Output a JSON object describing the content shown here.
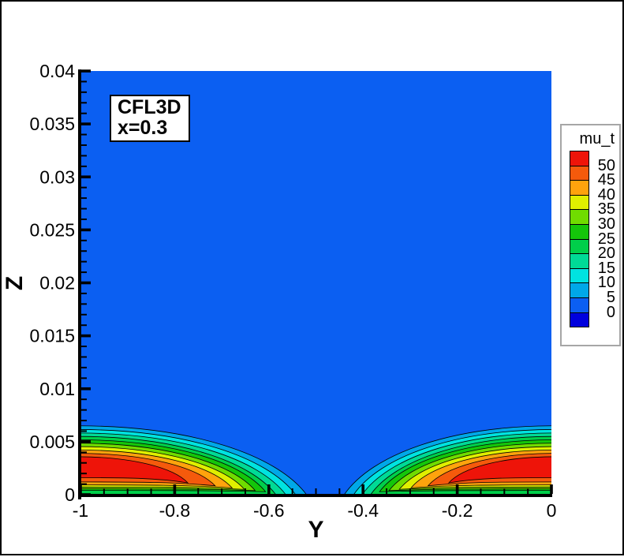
{
  "annotation": {
    "line1": "CFL3D",
    "line2": "x=0.3"
  },
  "axes": {
    "x": {
      "label": "Y",
      "tick_labels": [
        "-1",
        "-0.8",
        "-0.6",
        "-0.4",
        "-0.2",
        "0"
      ]
    },
    "z": {
      "label": "Z",
      "tick_labels": [
        "0",
        "0.005",
        "0.01",
        "0.015",
        "0.02",
        "0.025",
        "0.03",
        "0.035",
        "0.04"
      ]
    }
  },
  "legend": {
    "title": "mu_t",
    "labels_top_to_bottom": [
      "50",
      "45",
      "40",
      "35",
      "30",
      "25",
      "20",
      "15",
      "10",
      "5",
      "0"
    ]
  },
  "chart_data": {
    "type": "contour",
    "title": "",
    "xlabel": "Y",
    "ylabel": "Z",
    "xlim": [
      -1,
      0
    ],
    "ylim": [
      0,
      0.04
    ],
    "x_major_tick_step": 0.2,
    "x_minor_tick_step": 0.05,
    "y_major_tick_step": 0.005,
    "y_minor_tick_step": 0.001,
    "grid": false,
    "legend_position": "right",
    "contour_variable": "mu_t",
    "contour_levels": [
      0,
      5,
      10,
      15,
      20,
      25,
      30,
      35,
      40,
      45,
      50
    ],
    "band_colors_low_to_high": [
      "#0000dd",
      "#0b5ff2",
      "#00a8e8",
      "#00e3e0",
      "#00da96",
      "#00cf4a",
      "#14c60a",
      "#70dc00",
      "#e0ef00",
      "#ffa30d",
      "#f55a0c",
      "#ee1409"
    ],
    "background_value_band": "0-5",
    "blobs": [
      {
        "name": "left-wall-jet",
        "anchor_y": -1,
        "direction": 1,
        "peak": {
          "y": -0.92,
          "z": 0.0026,
          "value": ">50"
        },
        "levels": [
          {
            "level": 5,
            "z_top": 0.0065,
            "z_bot": 0.0,
            "y_tip": -0.52
          },
          {
            "level": 10,
            "z_top": 0.00615,
            "z_bot": 0.0,
            "y_tip": -0.543
          },
          {
            "level": 15,
            "z_top": 0.00582,
            "z_bot": 0.0,
            "y_tip": -0.564
          },
          {
            "level": 20,
            "z_top": 0.0055,
            "z_bot": 0.0,
            "y_tip": -0.585
          },
          {
            "level": 25,
            "z_top": 0.00518,
            "z_bot": 0.0004,
            "y_tip": -0.607
          },
          {
            "level": 30,
            "z_top": 0.00486,
            "z_bot": 0.00055,
            "y_tip": -0.629
          },
          {
            "level": 35,
            "z_top": 0.00454,
            "z_bot": 0.00072,
            "y_tip": -0.652
          },
          {
            "level": 40,
            "z_top": 0.00422,
            "z_bot": 0.00092,
            "y_tip": -0.678
          },
          {
            "level": 45,
            "z_top": 0.0039,
            "z_bot": 0.0012,
            "y_tip": -0.714
          },
          {
            "level": 50,
            "z_top": 0.00358,
            "z_bot": 0.0016,
            "y_tip": -0.772
          }
        ]
      },
      {
        "name": "right-wall-jet",
        "anchor_y": 0,
        "direction": -1,
        "peak": {
          "y": -0.08,
          "z": 0.0026,
          "value": ">50"
        },
        "levels": [
          {
            "level": 5,
            "z_top": 0.0065,
            "z_bot": 0.0,
            "y_tip": -0.44
          },
          {
            "level": 10,
            "z_top": 0.00615,
            "z_bot": 0.0,
            "y_tip": -0.42
          },
          {
            "level": 15,
            "z_top": 0.00582,
            "z_bot": 0.0,
            "y_tip": -0.402
          },
          {
            "level": 20,
            "z_top": 0.0055,
            "z_bot": 0.0,
            "y_tip": -0.384
          },
          {
            "level": 25,
            "z_top": 0.00518,
            "z_bot": 0.0004,
            "y_tip": -0.365
          },
          {
            "level": 30,
            "z_top": 0.00486,
            "z_bot": 0.00055,
            "y_tip": -0.345
          },
          {
            "level": 35,
            "z_top": 0.00454,
            "z_bot": 0.00072,
            "y_tip": -0.323
          },
          {
            "level": 40,
            "z_top": 0.00422,
            "z_bot": 0.00092,
            "y_tip": -0.298
          },
          {
            "level": 45,
            "z_top": 0.0039,
            "z_bot": 0.0012,
            "y_tip": -0.262
          },
          {
            "level": 50,
            "z_top": 0.00358,
            "z_bot": 0.0016,
            "y_tip": -0.218
          }
        ]
      }
    ]
  }
}
